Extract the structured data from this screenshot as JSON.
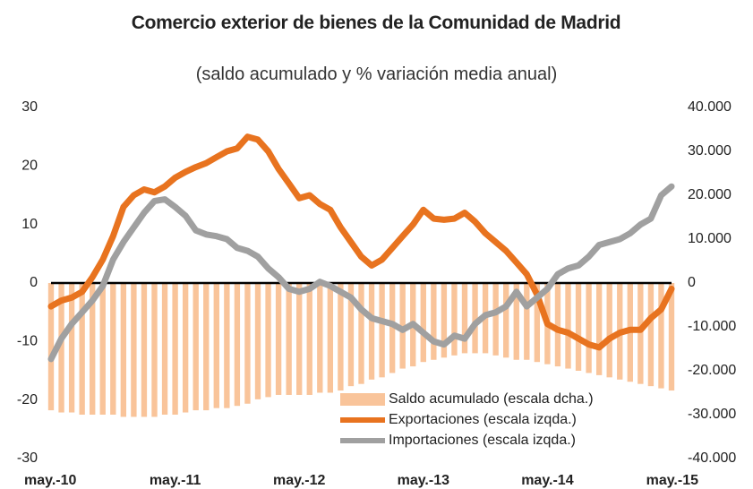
{
  "chart_data": {
    "type": "line",
    "title": "Comercio exterior de bienes de la Comunidad de Madrid",
    "subtitle": "(saldo acumulado y % variación media anual)",
    "categories": [
      "may.-10",
      null,
      null,
      null,
      null,
      null,
      null,
      null,
      null,
      null,
      null,
      null,
      "may.-11",
      null,
      null,
      null,
      null,
      null,
      null,
      null,
      null,
      null,
      null,
      null,
      "may.-12",
      null,
      null,
      null,
      null,
      null,
      null,
      null,
      null,
      null,
      null,
      null,
      "may.-13",
      null,
      null,
      null,
      null,
      null,
      null,
      null,
      null,
      null,
      null,
      null,
      "may.-14",
      null,
      null,
      null,
      null,
      null,
      null,
      null,
      null,
      null,
      null,
      null,
      "may.-15"
    ],
    "ylim": [
      -30,
      30
    ],
    "yticks": [
      -30,
      -20,
      -10,
      0,
      10,
      20,
      30
    ],
    "y2lim": [
      -40000,
      40000
    ],
    "y2ticks": [
      {
        "value": -40000,
        "label": "-40.000"
      },
      {
        "value": -30000,
        "label": "-30.000"
      },
      {
        "value": -20000,
        "label": "-20.000"
      },
      {
        "value": -10000,
        "label": "-10.000"
      },
      0,
      {
        "value": 10000,
        "label": "10.000"
      },
      {
        "value": 20000,
        "label": "20.000"
      },
      {
        "value": 30000,
        "label": "30.000"
      },
      {
        "value": 40000,
        "label": "40.000"
      }
    ],
    "legend": "lower right",
    "series": [
      {
        "name": "Saldo acumulado (escala dcha.)",
        "type": "bar",
        "axis": "y2",
        "color": "#f9c49a",
        "values": [
          -29000,
          -29500,
          -29500,
          -30000,
          -30000,
          -30000,
          -30000,
          -30500,
          -30500,
          -30500,
          -30500,
          -30000,
          -30000,
          -29500,
          -29000,
          -29000,
          -28500,
          -28500,
          -28000,
          -27500,
          -26500,
          -26000,
          -25500,
          -25500,
          -25500,
          -25500,
          -25000,
          -25000,
          -24500,
          -23500,
          -23000,
          -22000,
          -21500,
          -20500,
          -19500,
          -19000,
          -18000,
          -17500,
          -17000,
          -16500,
          -16000,
          -16000,
          -16000,
          -16500,
          -17000,
          -17500,
          -17500,
          -18000,
          -18500,
          -19000,
          -19500,
          -20000,
          -20500,
          -21000,
          -21500,
          -22000,
          -22500,
          -23000,
          -23500,
          -24000,
          -24500
        ]
      },
      {
        "name": "Exportaciones (escala izqda.)",
        "type": "line",
        "color": "#e8731f",
        "values": [
          -4,
          -3,
          -2.5,
          -1.5,
          1,
          4,
          8,
          13,
          15,
          16,
          15.5,
          16.5,
          18,
          19,
          19.8,
          20.5,
          21.5,
          22.5,
          23,
          25,
          24.5,
          22.5,
          19.5,
          17,
          14.5,
          15,
          13.5,
          12.5,
          9.5,
          7,
          4.5,
          3,
          4,
          6,
          8,
          10,
          12.5,
          11,
          10.8,
          11,
          12,
          10.5,
          8.5,
          7,
          5.5,
          3.5,
          1.5,
          -2,
          -7,
          -8,
          -8.5,
          -9.5,
          -10.5,
          -11,
          -9.5,
          -8.5,
          -8,
          -8,
          -6,
          -4.5,
          -1
        ]
      },
      {
        "name": "Importaciones (escala izqda.)",
        "type": "line",
        "color": "#a0a0a0",
        "values": [
          -13,
          -9.5,
          -7,
          -5,
          -3,
          -0.5,
          4,
          7,
          9.5,
          12,
          14,
          14.3,
          13,
          11.5,
          9,
          8.3,
          8,
          7.5,
          6,
          5.5,
          4.5,
          2.5,
          1,
          -1,
          -1.5,
          -1,
          0.2,
          -0.5,
          -1.5,
          -2.5,
          -4.5,
          -6,
          -6.5,
          -7,
          -8,
          -7,
          -8.5,
          -10,
          -10.5,
          -9,
          -9.5,
          -7,
          -5.5,
          -5,
          -4,
          -1.5,
          -4,
          -2.5,
          -1,
          1.5,
          2.5,
          3,
          4.5,
          6.5,
          7,
          7.5,
          8.5,
          10,
          11,
          15,
          16.5
        ]
      }
    ]
  }
}
